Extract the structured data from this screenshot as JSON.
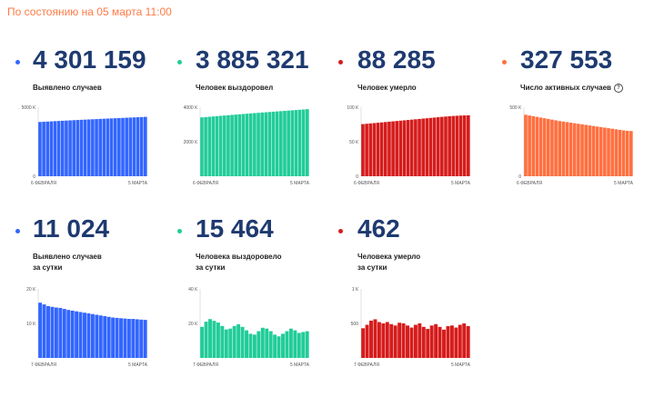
{
  "header": {
    "status_text": "По состоянию на 05 марта 11:00",
    "status_color": "#ff7a45"
  },
  "colors": {
    "blue": "#3366ff",
    "teal": "#22cc99",
    "red": "#d61c1c",
    "orange": "#ff7040"
  },
  "stats": [
    {
      "id": "cases-total",
      "value": "4 301 159",
      "label": "Выявлено случаев",
      "color": "#3366ff",
      "icon": "bullet-dot-icon"
    },
    {
      "id": "recovered-total",
      "value": "3 885 321",
      "label": "Человек выздоровел",
      "color": "#22cc99",
      "icon": "bullet-dot-icon"
    },
    {
      "id": "deaths-total",
      "value": "88 285",
      "label": "Человек умерло",
      "color": "#d61c1c",
      "icon": "bullet-dot-icon"
    },
    {
      "id": "active-total",
      "value": "327 553",
      "label": "Число активных случаев",
      "color": "#ff7040",
      "icon": "info-icon",
      "info_glyph": "?"
    },
    {
      "id": "cases-daily",
      "value": "11 024",
      "label": "Выявлено случаев\nза сутки",
      "color": "#3366ff",
      "icon": "bullet-dot-icon"
    },
    {
      "id": "recovered-daily",
      "value": "15 464",
      "label": "Человека выздоровело\nза сутки",
      "color": "#22cc99",
      "icon": "bullet-dot-icon"
    },
    {
      "id": "deaths-daily",
      "value": "462",
      "label": "Человека умерло\nза сутки",
      "color": "#d61c1c",
      "icon": "bullet-dot-icon"
    }
  ],
  "chart_data": [
    {
      "type": "bar",
      "id": "chart-cases-total",
      "color": "#3366ff",
      "x_start_label": "6 ФЕВРАЛЯ",
      "x_end_label": "5 МАРТА",
      "ylim": [
        0,
        5000000
      ],
      "y_ticks": [
        {
          "value": 0,
          "label": "0"
        },
        {
          "value": 5000000,
          "label": "5000 К"
        }
      ],
      "values": [
        3930000,
        3945000,
        3960000,
        3975000,
        3990000,
        4004000,
        4018000,
        4032000,
        4046000,
        4060000,
        4074000,
        4088000,
        4101000,
        4114000,
        4127000,
        4140000,
        4153000,
        4166000,
        4178000,
        4190000,
        4202000,
        4214000,
        4226000,
        4238000,
        4250000,
        4262000,
        4274000,
        4288000,
        4301159
      ]
    },
    {
      "type": "bar",
      "id": "chart-recovered-total",
      "color": "#22cc99",
      "x_start_label": "6 ФЕВРАЛЯ",
      "x_end_label": "5 МАРТА",
      "ylim": [
        0,
        4000000
      ],
      "y_ticks": [
        {
          "value": 2000000,
          "label": "2000 К"
        },
        {
          "value": 4000000,
          "label": "4000 К"
        }
      ],
      "values": [
        3410000,
        3428000,
        3446000,
        3464000,
        3482000,
        3500000,
        3518000,
        3536000,
        3554000,
        3572000,
        3590000,
        3607000,
        3624000,
        3641000,
        3658000,
        3675000,
        3692000,
        3708000,
        3724000,
        3740000,
        3756000,
        3772000,
        3788000,
        3804000,
        3820000,
        3836000,
        3852000,
        3868000,
        3885321
      ]
    },
    {
      "type": "bar",
      "id": "chart-deaths-total",
      "color": "#d61c1c",
      "x_start_label": "6 ФЕВРАЛЯ",
      "x_end_label": "5 МАРТА",
      "ylim": [
        0,
        100000
      ],
      "y_ticks": [
        {
          "value": 0,
          "label": "0"
        },
        {
          "value": 50000,
          "label": "50 К"
        },
        {
          "value": 100000,
          "label": "100 К"
        }
      ],
      "values": [
        75500,
        76000,
        76500,
        77000,
        77500,
        78000,
        78500,
        79000,
        79500,
        80000,
        80500,
        81000,
        81500,
        82000,
        82500,
        83000,
        83500,
        84000,
        84500,
        85000,
        85500,
        86000,
        86500,
        87000,
        87300,
        87600,
        87900,
        88100,
        88285
      ]
    },
    {
      "type": "bar",
      "id": "chart-active-total",
      "color": "#ff7040",
      "x_start_label": "6 ФЕВРАЛЯ",
      "x_end_label": "5 МАРТА",
      "ylim": [
        0,
        500000
      ],
      "y_ticks": [
        {
          "value": 0,
          "label": "0"
        },
        {
          "value": 500000,
          "label": "500 К"
        }
      ],
      "values": [
        445000,
        440000,
        435000,
        430000,
        425000,
        420000,
        415000,
        410000,
        405000,
        400000,
        396000,
        392000,
        388000,
        384000,
        380000,
        376000,
        372000,
        368000,
        364000,
        360000,
        356000,
        352000,
        348000,
        344000,
        340000,
        336000,
        332000,
        329000,
        327553
      ]
    },
    {
      "type": "bar",
      "id": "chart-cases-daily",
      "color": "#3366ff",
      "x_start_label": "7 ФЕВРАЛЯ",
      "x_end_label": "5 МАРТА",
      "ylim": [
        0,
        20000
      ],
      "y_ticks": [
        {
          "value": 10000,
          "label": "10 К"
        },
        {
          "value": 20000,
          "label": "20 К"
        }
      ],
      "values": [
        16000,
        15500,
        15000,
        14800,
        14600,
        14500,
        14200,
        13900,
        13700,
        13500,
        13300,
        13100,
        12900,
        12700,
        12500,
        12300,
        12100,
        11900,
        11700,
        11600,
        11500,
        11400,
        11300,
        11300,
        11200,
        11100,
        11024
      ]
    },
    {
      "type": "bar",
      "id": "chart-recovered-daily",
      "color": "#22cc99",
      "x_start_label": "7 ФЕВРАЛЯ",
      "x_end_label": "5 МАРТА",
      "ylim": [
        0,
        40000
      ],
      "y_ticks": [
        {
          "value": 20000,
          "label": "20 К"
        },
        {
          "value": 40000,
          "label": "40 К"
        }
      ],
      "values": [
        18000,
        21000,
        22500,
        21500,
        20500,
        18500,
        16500,
        17000,
        18500,
        19500,
        18000,
        16000,
        14000,
        13500,
        15500,
        17500,
        17000,
        15500,
        13500,
        12500,
        14000,
        15500,
        17000,
        16000,
        14500,
        15000,
        15464
      ]
    },
    {
      "type": "bar",
      "id": "chart-deaths-daily",
      "color": "#d61c1c",
      "x_start_label": "7 ФЕВРАЛЯ",
      "x_end_label": "5 МАРТА",
      "ylim": [
        0,
        1000
      ],
      "y_ticks": [
        {
          "value": 500,
          "label": "500"
        },
        {
          "value": 1000,
          "label": "1 К"
        }
      ],
      "values": [
        430,
        480,
        540,
        560,
        520,
        500,
        520,
        490,
        470,
        510,
        500,
        470,
        440,
        480,
        500,
        450,
        420,
        470,
        490,
        450,
        410,
        460,
        470,
        440,
        480,
        500,
        462
      ]
    }
  ]
}
